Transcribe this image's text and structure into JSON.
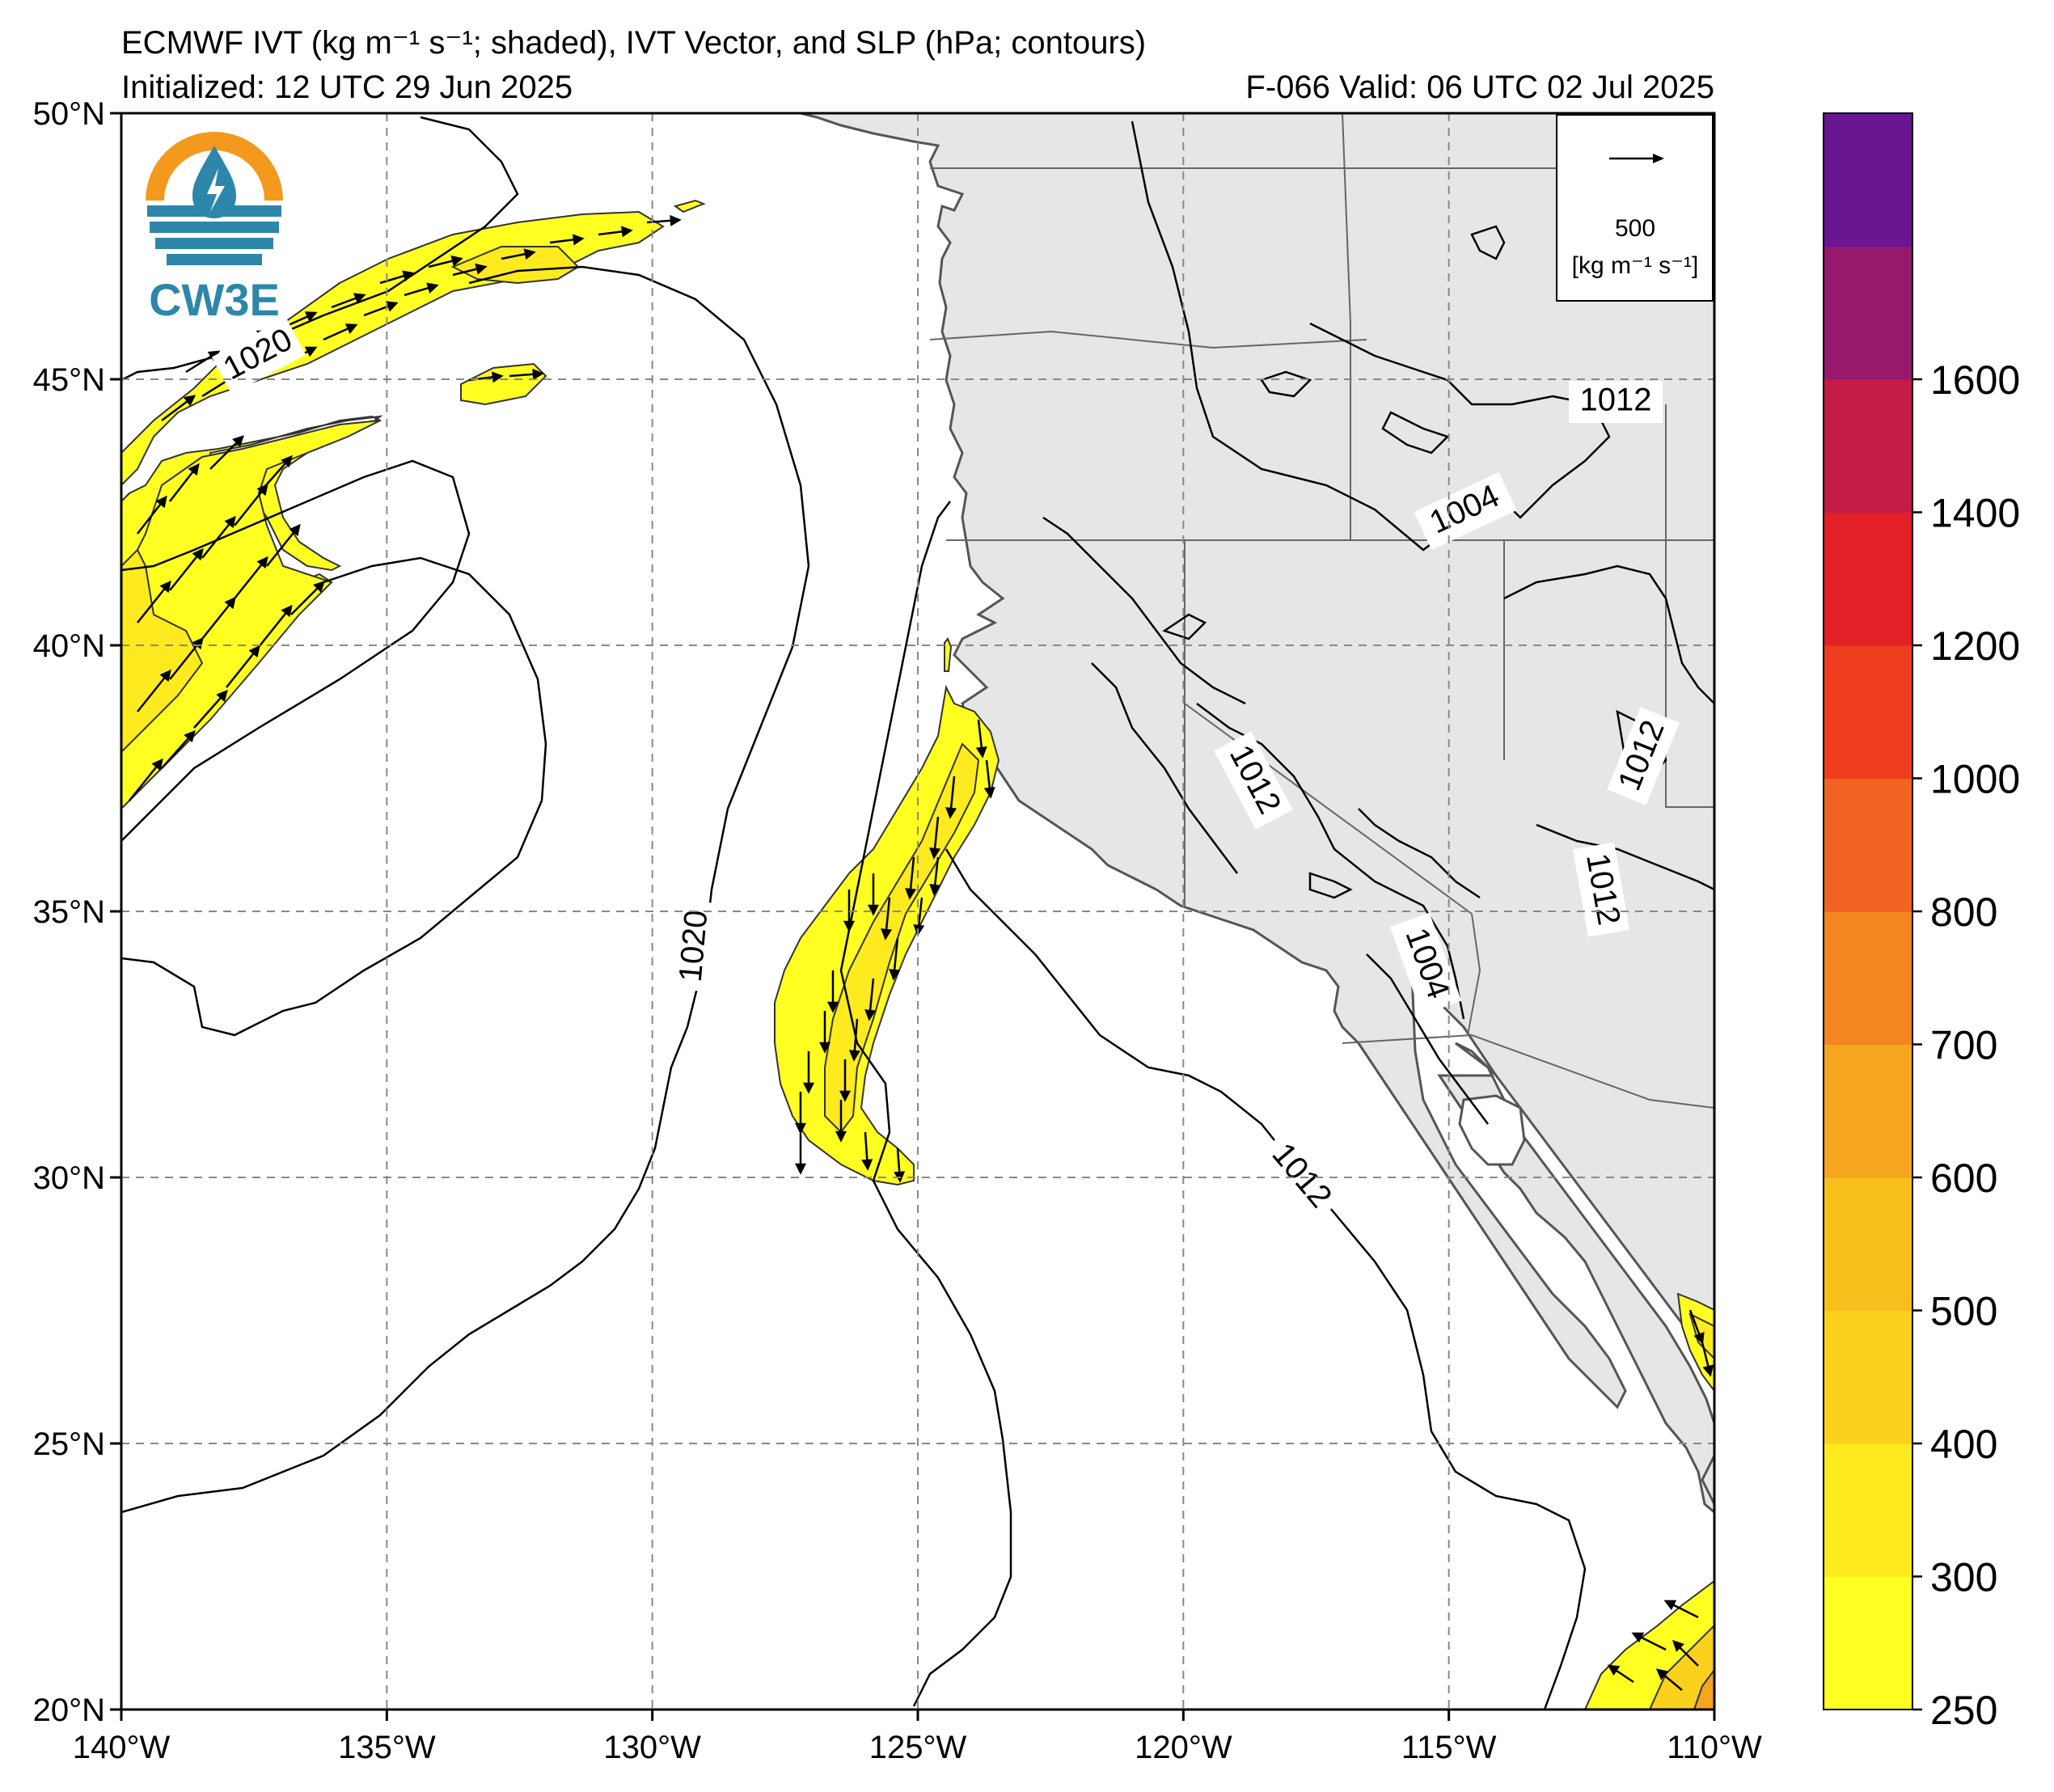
{
  "header": {
    "title_line1": "ECMWF IVT (kg m⁻¹ s⁻¹; shaded), IVT Vector, and SLP (hPa; contours)",
    "title_line2": "Initialized: 12 UTC 29 Jun 2025",
    "title_line3": "F-066  Valid: 06 UTC 02 Jul 2025"
  },
  "logo": {
    "text": "CW3E",
    "colors": {
      "orange": "#F39A1E",
      "blue": "#2E86AB"
    }
  },
  "vector_key": {
    "value": "500",
    "units": "[kg m⁻¹ s⁻¹]"
  },
  "map": {
    "lat_labels": [
      "50°N",
      "45°N",
      "40°N",
      "35°N",
      "30°N",
      "25°N",
      "20°N"
    ],
    "lon_labels": [
      "140°W",
      "135°W",
      "130°W",
      "125°W",
      "120°W",
      "115°W",
      "110°W"
    ],
    "extent": {
      "lon_min": -140,
      "lon_max": -110,
      "lat_min": 20,
      "lat_max": 50
    },
    "land_color": "#E6E6E6",
    "ocean_color": "#FFFFFF",
    "contour_labels": [
      "1020",
      "1020",
      "1012",
      "1012",
      "1012",
      "1012",
      "1004",
      "1004",
      "1012"
    ]
  },
  "colorbar": {
    "levels": [
      "250",
      "300",
      "400",
      "500",
      "600",
      "700",
      "800",
      "1000",
      "1200",
      "1400",
      "1600"
    ],
    "tick_labels": [
      "1600",
      "1400",
      "1200",
      "1000",
      "800",
      "700",
      "600",
      "500",
      "400",
      "300",
      "250"
    ],
    "colors": [
      "#FFFF21",
      "#FDEA1F",
      "#FAD21D",
      "#F7BF1C",
      "#F5A51E",
      "#F38621",
      "#F16320",
      "#EE3D1E",
      "#E42027",
      "#C41B48",
      "#96196E",
      "#6A1592"
    ]
  }
}
